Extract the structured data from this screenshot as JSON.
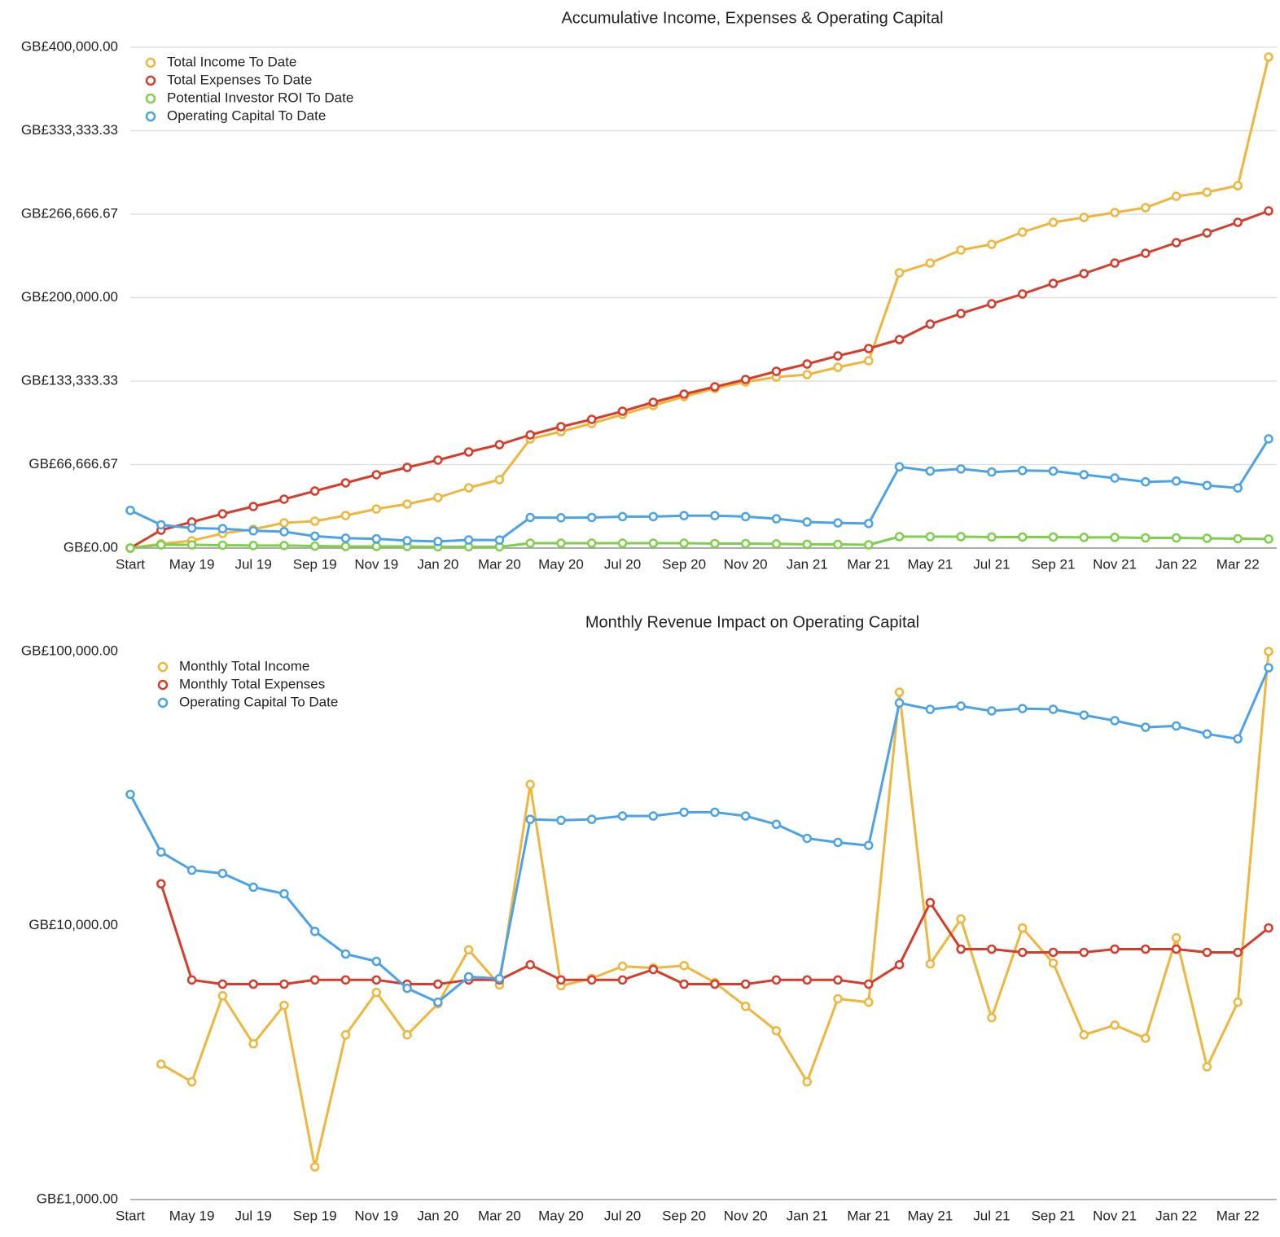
{
  "chart_data": [
    {
      "type": "line",
      "title": "Accumulative Income, Expenses & Operating Capital",
      "categories": [
        "Start",
        null,
        "May 19",
        null,
        "Jul 19",
        null,
        "Sep 19",
        null,
        "Nov 19",
        null,
        "Jan 20",
        null,
        "Mar 20",
        null,
        "May 20",
        null,
        "Jul 20",
        null,
        "Sep 20",
        null,
        "Nov 20",
        null,
        "Jan 21",
        null,
        "Mar 21",
        null,
        "May 21",
        null,
        "Jul 21",
        null,
        "Sep 21",
        null,
        "Nov 21",
        null,
        "Jan 22",
        null,
        "Mar 22",
        null
      ],
      "ylim": [
        0,
        400000
      ],
      "yticks": [
        {
          "value": 0,
          "label": "GB£0.00"
        },
        {
          "value": 66666.67,
          "label": "GB£66,666.67"
        },
        {
          "value": 133333.33,
          "label": "GB£133,333.33"
        },
        {
          "value": 200000,
          "label": "GB£200,000.00"
        },
        {
          "value": 266666.67,
          "label": "GB£266,666.67"
        },
        {
          "value": 333333.33,
          "label": "GB£333,333.33"
        },
        {
          "value": 400000,
          "label": "GB£400,000.00"
        }
      ],
      "grid": true,
      "log_scale": false,
      "series": [
        {
          "name": "Total Income To Date",
          "color": "#f0b63c",
          "values": [
            0,
            3300,
            5850,
            11700,
            14960,
            20160,
            21460,
            26000,
            31200,
            35120,
            40330,
            48130,
            54630,
            87150,
            93000,
            99500,
            106670,
            113820,
            120970,
            127480,
            132680,
            136580,
            138530,
            144390,
            149590,
            219840,
            227640,
            238050,
            242600,
            252350,
            260160,
            264060,
            267960,
            271870,
            280970,
            284220,
            289430,
            392190
          ]
        },
        {
          "name": "Total Expenses To Date",
          "color": "#d93b2b",
          "values": [
            0,
            14310,
            20810,
            27320,
            33180,
            39030,
            45530,
            52040,
            58540,
            64390,
            70250,
            76750,
            82600,
            90410,
            96910,
            102770,
            109270,
            116430,
            122930,
            128780,
            134640,
            141140,
            146990,
            153490,
            159350,
            166500,
            178860,
            187310,
            195120,
            202920,
            211380,
            219190,
            227640,
            235450,
            243900,
            251700,
            260160,
            269260
          ]
        },
        {
          "name": "Potential Investor ROI To Date",
          "color": "#7ed04b",
          "values": [
            0,
            2600,
            2600,
            2300,
            2000,
            2000,
            1600,
            1300,
            1300,
            1300,
            1000,
            1000,
            1000,
            3900,
            3900,
            3900,
            3900,
            3900,
            3900,
            3600,
            3600,
            3300,
            3000,
            2900,
            2600,
            9100,
            9100,
            9100,
            8800,
            8800,
            8800,
            8500,
            8500,
            8100,
            8100,
            7800,
            7500,
            7200
          ]
        },
        {
          "name": "Operating Capital To Date",
          "color": "#4aa3ea",
          "values": [
            30100,
            18540,
            15920,
            15490,
            13800,
            13060,
            9520,
            7870,
            7400,
            5900,
            5250,
            6500,
            6400,
            24400,
            24200,
            24400,
            25100,
            25100,
            25900,
            25900,
            25100,
            23400,
            20800,
            20100,
            19600,
            64900,
            61500,
            63200,
            60700,
            61900,
            61500,
            58600,
            55900,
            52900,
            53500,
            50000,
            48000,
            87200
          ]
        }
      ]
    },
    {
      "type": "line",
      "title": "Monthly Revenue Impact on Operating Capital",
      "categories": [
        "Start",
        null,
        "May 19",
        null,
        "Jul 19",
        null,
        "Sep 19",
        null,
        "Nov 19",
        null,
        "Jan 20",
        null,
        "Mar 20",
        null,
        "May 20",
        null,
        "Jul 20",
        null,
        "Sep 20",
        null,
        "Nov 20",
        null,
        "Jan 21",
        null,
        "Mar 21",
        null,
        "May 21",
        null,
        "Jul 21",
        null,
        "Sep 21",
        null,
        "Nov 21",
        null,
        "Jan 22",
        null,
        "Mar 22",
        null
      ],
      "ylim": [
        1000,
        100000
      ],
      "yticks": [
        {
          "value": 1000,
          "label": "GB£1,000.00"
        },
        {
          "value": 10000,
          "label": "GB£10,000.00"
        },
        {
          "value": 100000,
          "label": "GB£100,000.00"
        }
      ],
      "grid": false,
      "log_scale": true,
      "series": [
        {
          "name": "Monthly Total Income",
          "color": "#f0b63c",
          "values": [
            null,
            3120,
            2690,
            5540,
            3700,
            5110,
            1315,
            3990,
            5700,
            3990,
            5180,
            8150,
            6070,
            32700,
            6030,
            6410,
            7100,
            7000,
            7140,
            6190,
            5070,
            4130,
            2690,
            5400,
            5250,
            71000,
            7240,
            10560,
            4610,
            9790,
            7290,
            3990,
            4330,
            3880,
            9020,
            3050,
            5250,
            100000
          ]
        },
        {
          "name": "Monthly Total Expenses",
          "color": "#d93b2b",
          "values": [
            null,
            14200,
            6330,
            6110,
            6110,
            6110,
            6330,
            6330,
            6330,
            6110,
            6110,
            6330,
            6330,
            7190,
            6330,
            6330,
            6330,
            6910,
            6110,
            6110,
            6110,
            6330,
            6330,
            6330,
            6110,
            7190,
            12120,
            8200,
            8200,
            7980,
            7980,
            7980,
            8200,
            8200,
            8200,
            7980,
            7980,
            9800
          ]
        },
        {
          "name": "Operating Capital To Date",
          "color": "#4aa3ea",
          "values": [
            30100,
            18540,
            15920,
            15490,
            13800,
            13060,
            9520,
            7870,
            7400,
            5900,
            5250,
            6500,
            6400,
            24400,
            24200,
            24400,
            25100,
            25100,
            25900,
            25900,
            25100,
            23400,
            20800,
            20100,
            19600,
            64900,
            61500,
            63200,
            60700,
            61900,
            61500,
            58600,
            55900,
            52900,
            53500,
            50000,
            48000,
            87200
          ]
        }
      ]
    }
  ]
}
